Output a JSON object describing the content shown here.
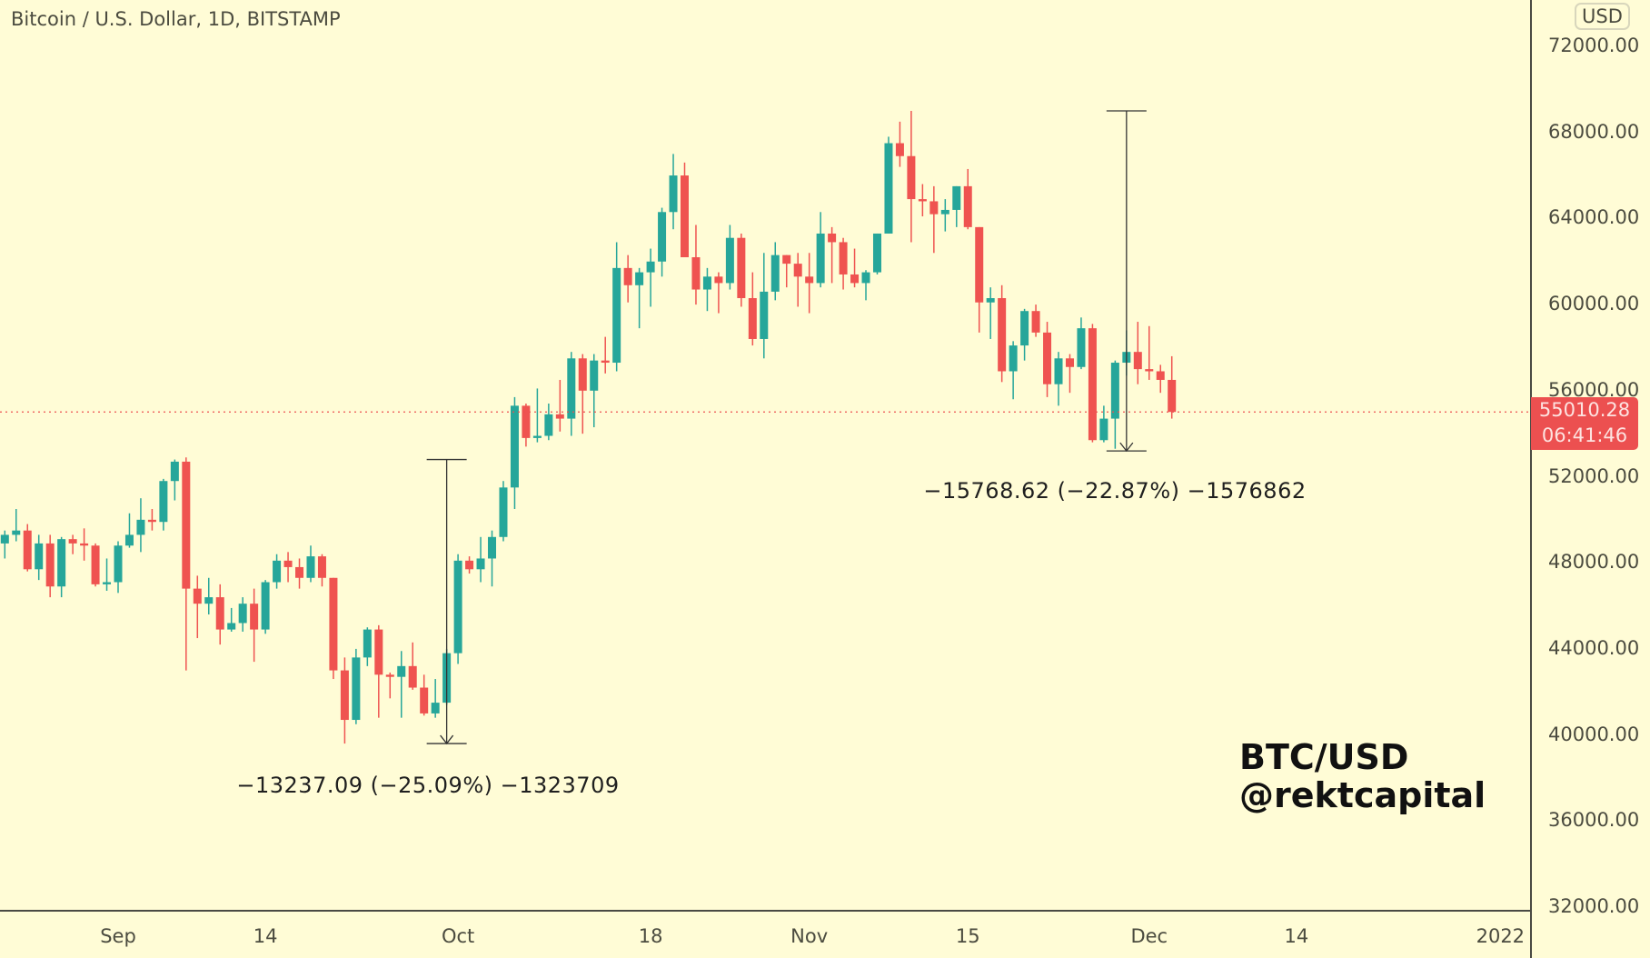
{
  "header": {
    "title": "Bitcoin / U.S. Dollar, 1D, BITSTAMP",
    "currency_button": "USD"
  },
  "last_price": {
    "price": "55010.28",
    "countdown": "06:41:46",
    "color": "#ec5050"
  },
  "watermark": {
    "line1": "BTC/USD",
    "line2": "@rektcapital"
  },
  "measurements": [
    {
      "label": "−13237.09 (−25.09%) −1323709",
      "from": {
        "date": "2021-09-30",
        "price": 52800
      },
      "to": {
        "date": "2021-09-30",
        "price": 39600
      }
    },
    {
      "label": "−15768.62 (−22.87%) −1576862",
      "from": {
        "date": "2021-11-29",
        "price": 69000
      },
      "to": {
        "date": "2021-11-29",
        "price": 53200
      }
    }
  ],
  "chart_data": {
    "type": "candlestick",
    "title": "Bitcoin / U.S. Dollar, 1D, BITSTAMP",
    "ylim": [
      32000,
      73000
    ],
    "y_ticks": [
      "72000.00",
      "68000.00",
      "64000.00",
      "60000.00",
      "56000.00",
      "52000.00",
      "48000.00",
      "44000.00",
      "40000.00",
      "36000.00",
      "32000.00"
    ],
    "x_ticks": [
      {
        "label": "Sep",
        "date": "2021-09-01"
      },
      {
        "label": "14",
        "date": "2021-09-14"
      },
      {
        "label": "Oct",
        "date": "2021-10-01"
      },
      {
        "label": "18",
        "date": "2021-10-18"
      },
      {
        "label": "Nov",
        "date": "2021-11-01"
      },
      {
        "label": "15",
        "date": "2021-11-15"
      },
      {
        "label": "Dec",
        "date": "2021-12-01"
      },
      {
        "label": "14",
        "date": "2021-12-14"
      },
      {
        "label": "2022",
        "date": "2022-01-01"
      }
    ],
    "up_color": "#26a69a",
    "down_color": "#ef5350",
    "columns": [
      "date",
      "open",
      "high",
      "low",
      "close"
    ],
    "candles": [
      [
        "2021-08-22",
        48900,
        49500,
        48200,
        49300
      ],
      [
        "2021-08-23",
        49300,
        50500,
        49000,
        49500
      ],
      [
        "2021-08-24",
        49500,
        49800,
        47600,
        47700
      ],
      [
        "2021-08-25",
        47700,
        49300,
        47200,
        48900
      ],
      [
        "2021-08-26",
        48900,
        49300,
        46400,
        46900
      ],
      [
        "2021-08-27",
        46900,
        49200,
        46400,
        49100
      ],
      [
        "2021-08-28",
        49100,
        49300,
        48400,
        48900
      ],
      [
        "2021-08-29",
        48900,
        49600,
        48100,
        48800
      ],
      [
        "2021-08-30",
        48800,
        48900,
        46900,
        47000
      ],
      [
        "2021-08-31",
        47000,
        48200,
        46700,
        47100
      ],
      [
        "2021-09-01",
        47100,
        49000,
        46600,
        48800
      ],
      [
        "2021-09-02",
        48800,
        50300,
        48700,
        49300
      ],
      [
        "2021-09-03",
        49300,
        51000,
        48500,
        50000
      ],
      [
        "2021-09-04",
        50000,
        50500,
        49500,
        49900
      ],
      [
        "2021-09-05",
        49900,
        51900,
        49500,
        51800
      ],
      [
        "2021-09-06",
        51800,
        52800,
        50900,
        52700
      ],
      [
        "2021-09-07",
        52700,
        52900,
        43000,
        46800
      ],
      [
        "2021-09-08",
        46800,
        47400,
        44500,
        46100
      ],
      [
        "2021-09-09",
        46100,
        47300,
        45600,
        46400
      ],
      [
        "2021-09-10",
        46400,
        47000,
        44200,
        44900
      ],
      [
        "2021-09-11",
        44900,
        45900,
        44800,
        45200
      ],
      [
        "2021-09-12",
        45200,
        46400,
        44800,
        46100
      ],
      [
        "2021-09-13",
        46100,
        46800,
        43400,
        44900
      ],
      [
        "2021-09-14",
        44900,
        47200,
        44700,
        47100
      ],
      [
        "2021-09-15",
        47100,
        48400,
        46800,
        48100
      ],
      [
        "2021-09-16",
        48100,
        48500,
        47100,
        47800
      ],
      [
        "2021-09-17",
        47800,
        48200,
        46800,
        47300
      ],
      [
        "2021-09-18",
        47300,
        48800,
        47100,
        48300
      ],
      [
        "2021-09-19",
        48300,
        48400,
        46900,
        47300
      ],
      [
        "2021-09-20",
        47300,
        47300,
        42600,
        43000
      ],
      [
        "2021-09-21",
        43000,
        43600,
        39600,
        40700
      ],
      [
        "2021-09-22",
        40700,
        44000,
        40500,
        43600
      ],
      [
        "2021-09-23",
        43600,
        45000,
        43200,
        44900
      ],
      [
        "2021-09-24",
        44900,
        45100,
        40800,
        42800
      ],
      [
        "2021-09-25",
        42800,
        42900,
        41700,
        42700
      ],
      [
        "2021-09-26",
        42700,
        43900,
        40800,
        43200
      ],
      [
        "2021-09-27",
        43200,
        44300,
        42100,
        42200
      ],
      [
        "2021-09-28",
        42200,
        42800,
        40900,
        41000
      ],
      [
        "2021-09-29",
        41000,
        42600,
        40800,
        41500
      ],
      [
        "2021-09-30",
        41500,
        44000,
        41400,
        43800
      ],
      [
        "2021-10-01",
        43800,
        48400,
        43300,
        48100
      ],
      [
        "2021-10-02",
        48100,
        48300,
        47500,
        47700
      ],
      [
        "2021-10-03",
        47700,
        49200,
        47100,
        48200
      ],
      [
        "2021-10-04",
        48200,
        49500,
        46900,
        49200
      ],
      [
        "2021-10-05",
        49200,
        51800,
        49000,
        51500
      ],
      [
        "2021-10-06",
        51500,
        55700,
        50500,
        55300
      ],
      [
        "2021-10-07",
        55300,
        55400,
        53400,
        53800
      ],
      [
        "2021-10-08",
        53800,
        56100,
        53600,
        53900
      ],
      [
        "2021-10-09",
        53900,
        55400,
        53700,
        54900
      ],
      [
        "2021-10-10",
        54900,
        56500,
        54100,
        54700
      ],
      [
        "2021-10-11",
        54700,
        57800,
        53900,
        57500
      ],
      [
        "2021-10-12",
        57500,
        57700,
        54000,
        56000
      ],
      [
        "2021-10-13",
        56000,
        57700,
        54300,
        57400
      ],
      [
        "2021-10-14",
        57400,
        58500,
        56800,
        57300
      ],
      [
        "2021-10-15",
        57300,
        62900,
        56900,
        61700
      ],
      [
        "2021-10-16",
        61700,
        62300,
        60100,
        60900
      ],
      [
        "2021-10-17",
        60900,
        61700,
        58900,
        61500
      ],
      [
        "2021-10-18",
        61500,
        62600,
        59900,
        62000
      ],
      [
        "2021-10-19",
        62000,
        64500,
        61300,
        64300
      ],
      [
        "2021-10-20",
        64300,
        67000,
        63500,
        66000
      ],
      [
        "2021-10-21",
        66000,
        66600,
        62200,
        62200
      ],
      [
        "2021-10-22",
        62200,
        63700,
        60000,
        60700
      ],
      [
        "2021-10-23",
        60700,
        61700,
        59700,
        61300
      ],
      [
        "2021-10-24",
        61300,
        61500,
        59600,
        61000
      ],
      [
        "2021-10-25",
        61000,
        63700,
        60700,
        63100
      ],
      [
        "2021-10-26",
        63100,
        63300,
        59900,
        60300
      ],
      [
        "2021-10-27",
        60300,
        61500,
        58100,
        58400
      ],
      [
        "2021-10-28",
        58400,
        62400,
        57500,
        60600
      ],
      [
        "2021-10-29",
        60600,
        62900,
        60200,
        62300
      ],
      [
        "2021-10-30",
        62300,
        62300,
        60800,
        61900
      ],
      [
        "2021-10-31",
        61900,
        62400,
        59900,
        61300
      ],
      [
        "2021-11-01",
        61300,
        62400,
        59600,
        61000
      ],
      [
        "2021-11-02",
        61000,
        64300,
        60800,
        63300
      ],
      [
        "2021-11-03",
        63300,
        63600,
        61000,
        62900
      ],
      [
        "2021-11-04",
        62900,
        63100,
        60700,
        61400
      ],
      [
        "2021-11-05",
        61400,
        62600,
        60800,
        61000
      ],
      [
        "2021-11-06",
        61000,
        61600,
        60200,
        61500
      ],
      [
        "2021-11-07",
        61500,
        63300,
        61400,
        63300
      ],
      [
        "2021-11-08",
        63300,
        67800,
        63300,
        67500
      ],
      [
        "2021-11-09",
        67500,
        68500,
        66400,
        66900
      ],
      [
        "2021-11-10",
        66900,
        69000,
        62900,
        64900
      ],
      [
        "2021-11-11",
        64900,
        65600,
        64100,
        64800
      ],
      [
        "2021-11-12",
        64800,
        65500,
        62400,
        64200
      ],
      [
        "2021-11-13",
        64200,
        64900,
        63400,
        64400
      ],
      [
        "2021-11-14",
        64400,
        65500,
        63600,
        65500
      ],
      [
        "2021-11-15",
        65500,
        66300,
        63500,
        63600
      ],
      [
        "2021-11-16",
        63600,
        63600,
        58700,
        60100
      ],
      [
        "2021-11-17",
        60100,
        60800,
        58400,
        60300
      ],
      [
        "2021-11-18",
        60300,
        60900,
        56400,
        56900
      ],
      [
        "2021-11-19",
        56900,
        58300,
        55600,
        58100
      ],
      [
        "2021-11-20",
        58100,
        59800,
        57400,
        59700
      ],
      [
        "2021-11-21",
        59700,
        60000,
        58500,
        58700
      ],
      [
        "2021-11-22",
        58700,
        59200,
        55700,
        56300
      ],
      [
        "2021-11-23",
        56300,
        57800,
        55300,
        57500
      ],
      [
        "2021-11-24",
        57500,
        57700,
        55900,
        57100
      ],
      [
        "2021-11-25",
        57100,
        59400,
        57000,
        58900
      ],
      [
        "2021-11-26",
        58900,
        59100,
        53600,
        53700
      ],
      [
        "2021-11-27",
        53700,
        55300,
        53600,
        54700
      ],
      [
        "2021-11-28",
        54700,
        57400,
        53300,
        57300
      ],
      [
        "2021-11-29",
        57300,
        58800,
        56700,
        57800
      ],
      [
        "2021-11-30",
        57800,
        59200,
        56300,
        57000
      ],
      [
        "2021-12-01",
        57000,
        59000,
        56500,
        56900
      ],
      [
        "2021-12-02",
        56900,
        57200,
        55900,
        56500
      ],
      [
        "2021-12-03",
        56500,
        57600,
        54700,
        55010
      ]
    ]
  }
}
